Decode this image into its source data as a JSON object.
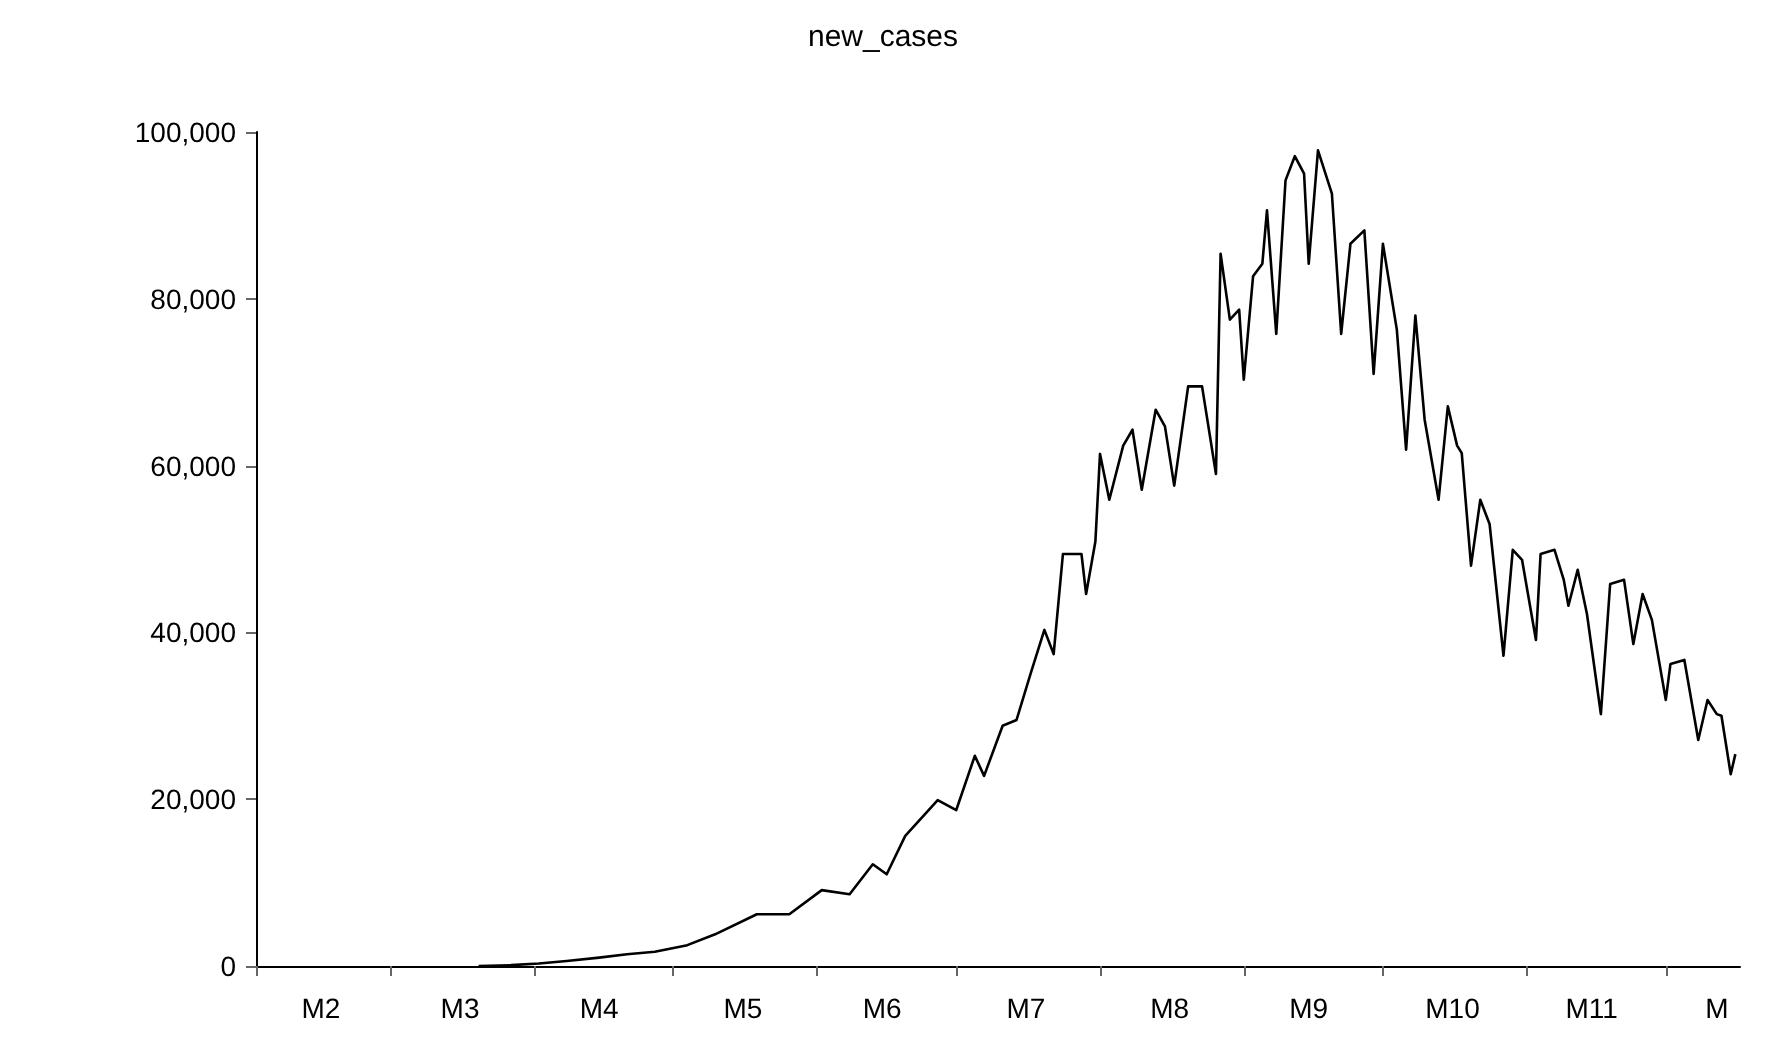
{
  "chart_data": {
    "type": "line",
    "title": "new_cases",
    "x": [
      "--03-20",
      "--03-27",
      "--04-02",
      "--04-08",
      "--04-15",
      "--04-21",
      "--04-27",
      "--05-04",
      "--05-10",
      "--05-19",
      "--05-26",
      "--06-02",
      "--06-08",
      "--06-13",
      "--06-16",
      "--06-20",
      "--06-27",
      "--07-01",
      "--07-05",
      "--07-07",
      "--07-11",
      "--07-14",
      "--07-17",
      "--07-20",
      "--07-22",
      "--07-24",
      "--07-28",
      "--07-29",
      "--07-31",
      "--08-01",
      "--08-03",
      "--08-06",
      "--08-08",
      "--08-10",
      "--08-13",
      "--08-15",
      "--08-17",
      "--08-20",
      "--08-23",
      "--08-26",
      "--08-27",
      "--08-29",
      "--08-31",
      "--09-01",
      "--09-03",
      "--09-05",
      "--09-06",
      "--09-08",
      "--09-10",
      "--09-12",
      "--09-14",
      "--09-15",
      "--09-17",
      "--09-20",
      "--09-22",
      "--09-24",
      "--09-27",
      "--09-29",
      "--10-01",
      "--10-04",
      "--10-06",
      "--10-08",
      "--10-10",
      "--10-13",
      "--10-15",
      "--10-17",
      "--10-18",
      "--10-20",
      "--10-22",
      "--10-24",
      "--10-27",
      "--10-29",
      "--10-31",
      "--11-03",
      "--11-04",
      "--11-07",
      "--11-09",
      "--11-10",
      "--11-12",
      "--11-14",
      "--11-17",
      "--11-19",
      "--11-22",
      "--11-24",
      "--11-26",
      "--11-28",
      "--12-01",
      "--12-02",
      "--12-05",
      "--12-08",
      "--12-10",
      "--12-12",
      "--12-13",
      "--12-15",
      "--12-16"
    ],
    "series": [
      {
        "color": "#000000",
        "values": [
          0,
          100,
          300,
          600,
          1000,
          1400,
          1700,
          2500,
          3800,
          6200,
          6200,
          9100,
          8600,
          12200,
          11000,
          15600,
          19900,
          18700,
          25200,
          22800,
          28800,
          29500,
          35000,
          40300,
          37400,
          49400,
          49400,
          44600,
          50900,
          61400,
          55900,
          62400,
          64300,
          57100,
          66700,
          64700,
          57600,
          69500,
          69500,
          59000,
          85400,
          77500,
          78700,
          70300,
          82700,
          84200,
          90600,
          75800,
          94200,
          97100,
          95000,
          84200,
          97800,
          92600,
          75800,
          86600,
          88200,
          71000,
          86600,
          76300,
          61900,
          78000,
          65500,
          55900,
          67100,
          62400,
          61500,
          48000,
          55900,
          53000,
          37200,
          49900,
          48700,
          39100,
          49400,
          49900,
          46300,
          43200,
          47500,
          42200,
          30200,
          45800,
          46300,
          38600,
          44600,
          41500,
          31900,
          36200,
          36700,
          27100,
          31900,
          30200,
          30000,
          23000,
          25400
        ]
      }
    ],
    "xlim": [
      "--02-01",
      "--12-17"
    ],
    "xticks": [
      {
        "value": "--02-01",
        "label": null
      },
      {
        "value": "--02-15",
        "label": "M2"
      },
      {
        "value": "--03-01",
        "label": null
      },
      {
        "value": "--03-16",
        "label": "M3"
      },
      {
        "value": "--04-01",
        "label": null
      },
      {
        "value": "--04-15",
        "label": "M4"
      },
      {
        "value": "--05-01",
        "label": null
      },
      {
        "value": "--05-16",
        "label": "M5"
      },
      {
        "value": "--06-01",
        "label": null
      },
      {
        "value": "--06-15",
        "label": "M6"
      },
      {
        "value": "--07-01",
        "label": null
      },
      {
        "value": "--07-16",
        "label": "M7"
      },
      {
        "value": "--08-01",
        "label": null
      },
      {
        "value": "--08-16",
        "label": "M8"
      },
      {
        "value": "--09-01",
        "label": null
      },
      {
        "value": "--09-15",
        "label": "M9"
      },
      {
        "value": "--10-01",
        "label": null
      },
      {
        "value": "--10-16",
        "label": "M10"
      },
      {
        "value": "--11-01",
        "label": null
      },
      {
        "value": "--11-15",
        "label": "M11"
      },
      {
        "value": "--12-01",
        "label": null
      },
      {
        "value": "--12-12",
        "label": "M"
      }
    ],
    "ylim": [
      0,
      100000
    ],
    "yticks": [
      {
        "value": 0,
        "label": "0"
      },
      {
        "value": 20000,
        "label": "20,000"
      },
      {
        "value": 40000,
        "label": "40,000"
      },
      {
        "value": 60000,
        "label": "60,000"
      },
      {
        "value": 80000,
        "label": "80,000"
      },
      {
        "value": 100000,
        "label": "100,000"
      }
    ],
    "marker": "none",
    "line_style": "solid"
  }
}
